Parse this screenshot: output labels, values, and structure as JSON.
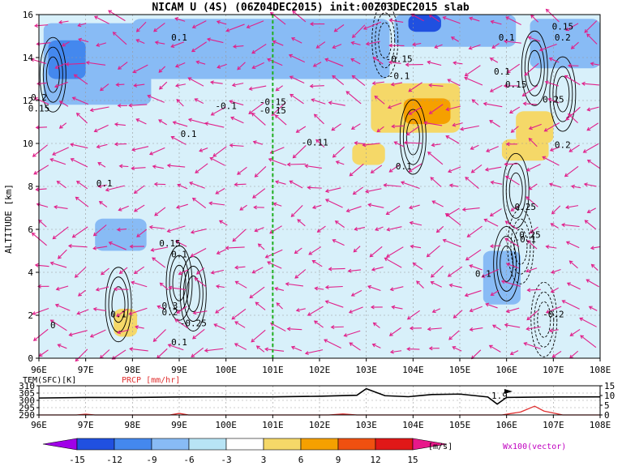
{
  "colors": {
    "background": "#ffffff",
    "vector": "#e0208a",
    "marker_line": "#20b020",
    "temp_line": "#000000",
    "prcp_line": "#e03030",
    "prcp_label": "#e03030",
    "vector_label": "#c000c0",
    "shade_neg": [
      "#a000e8",
      "#2050e0",
      "#4488ee",
      "#88bbf5",
      "#b8e4f5"
    ],
    "shade_pos": [
      "#f5d868",
      "#f5a000",
      "#f05010",
      "#e01818",
      "#b80018"
    ]
  },
  "chart_data": [
    {
      "type": "heatmap",
      "title": "NICAM U (4S) (06Z04DEC2015) init:00Z03DEC2015 slab",
      "xlabel": "",
      "ylabel": "ALTITUDE [km]",
      "xlim": [
        96,
        108
      ],
      "ylim": [
        0,
        16
      ],
      "x_ticks": [
        "96E",
        "97E",
        "98E",
        "99E",
        "100E",
        "101E",
        "102E",
        "103E",
        "104E",
        "105E",
        "106E",
        "107E",
        "108E"
      ],
      "y_ticks": [
        "0",
        "2",
        "4",
        "6",
        "8",
        "10",
        "12",
        "14",
        "16"
      ],
      "grid": true,
      "marker_longitude": 101,
      "shaded_variable_units": "[m/s]",
      "shaded_regions": [
        {
          "lon_min": 96.1,
          "lon_max": 98.4,
          "alt_min": 11.8,
          "alt_max": 15.6,
          "level": -6
        },
        {
          "lon_min": 98.0,
          "lon_max": 103.5,
          "alt_min": 13.0,
          "alt_max": 15.8,
          "level": -6
        },
        {
          "lon_min": 103.6,
          "lon_max": 106.2,
          "alt_min": 14.5,
          "alt_max": 16.0,
          "level": -6
        },
        {
          "lon_min": 106.5,
          "lon_max": 108.0,
          "alt_min": 13.5,
          "alt_max": 15.8,
          "level": -6
        },
        {
          "lon_min": 97.2,
          "lon_max": 98.3,
          "alt_min": 5.0,
          "alt_max": 6.5,
          "level": -6
        },
        {
          "lon_min": 103.9,
          "lon_max": 104.6,
          "alt_min": 15.2,
          "alt_max": 16.0,
          "level": -12
        },
        {
          "lon_min": 96.2,
          "lon_max": 97.0,
          "alt_min": 13.0,
          "alt_max": 14.8,
          "level": -9
        },
        {
          "lon_min": 105.5,
          "lon_max": 106.3,
          "alt_min": 2.5,
          "alt_max": 5.0,
          "level": -6
        },
        {
          "lon_min": 97.6,
          "lon_max": 98.1,
          "alt_min": 1.0,
          "alt_max": 2.3,
          "level": 3
        },
        {
          "lon_min": 103.1,
          "lon_max": 105.0,
          "alt_min": 10.5,
          "alt_max": 12.8,
          "level": 3
        },
        {
          "lon_min": 103.8,
          "lon_max": 104.8,
          "alt_min": 10.9,
          "alt_max": 12.1,
          "level": 6
        },
        {
          "lon_min": 106.2,
          "lon_max": 107.0,
          "alt_min": 10.0,
          "alt_max": 11.5,
          "level": 3
        },
        {
          "lon_min": 105.9,
          "lon_max": 106.9,
          "alt_min": 9.2,
          "alt_max": 10.2,
          "level": 3
        },
        {
          "lon_min": 102.7,
          "lon_max": 103.4,
          "alt_min": 9.0,
          "alt_max": 10.0,
          "level": 3
        }
      ],
      "contours": [
        {
          "lon": 96.3,
          "alt": 13.2,
          "value": 0.25,
          "sign": "pos"
        },
        {
          "lon": 97.7,
          "alt": 2.5,
          "value": 0.2,
          "sign": "pos"
        },
        {
          "lon": 99.0,
          "alt": 3.5,
          "value": 0.25,
          "sign": "pos"
        },
        {
          "lon": 99.3,
          "alt": 3.0,
          "value": 0.25,
          "sign": "pos"
        },
        {
          "lon": 104.0,
          "alt": 10.3,
          "value": 0.1,
          "sign": "pos"
        },
        {
          "lon": 106.2,
          "alt": 7.8,
          "value": 0.25,
          "sign": "pos"
        },
        {
          "lon": 106.0,
          "alt": 4.4,
          "value": 0.1,
          "sign": "pos"
        },
        {
          "lon": 106.6,
          "alt": 13.5,
          "value": 0.15,
          "sign": "pos"
        },
        {
          "lon": 107.2,
          "alt": 12.3,
          "value": 0.25,
          "sign": "pos"
        },
        {
          "lon": 103.4,
          "alt": 14.8,
          "value": -0.15,
          "sign": "neg"
        },
        {
          "lon": 106.8,
          "alt": 1.8,
          "value": -0.2,
          "sign": "neg"
        },
        {
          "lon": 106.3,
          "alt": 5.2,
          "value": -0.1,
          "sign": "neg"
        }
      ],
      "contour_labels": [
        {
          "text": "0.1",
          "lon": 99.0,
          "alt": 14.8
        },
        {
          "text": "0.2",
          "lon": 96.0,
          "alt": 12.0
        },
        {
          "text": "0.15",
          "lon": 96.0,
          "alt": 11.5
        },
        {
          "text": "0.1",
          "lon": 97.4,
          "alt": 8.0
        },
        {
          "text": "0.1",
          "lon": 99.2,
          "alt": 10.3
        },
        {
          "text": "-0.1",
          "lon": 100.0,
          "alt": 11.6
        },
        {
          "text": "-0.15",
          "lon": 101.0,
          "alt": 11.8
        },
        {
          "text": "-0.15",
          "lon": 101.0,
          "alt": 11.4
        },
        {
          "text": "-0.15",
          "lon": 103.7,
          "alt": 13.8
        },
        {
          "text": "-0.1",
          "lon": 103.7,
          "alt": 13.0
        },
        {
          "text": "-0.11",
          "lon": 101.9,
          "alt": 9.9
        },
        {
          "text": "0.1",
          "lon": 103.8,
          "alt": 8.8
        },
        {
          "text": "0.1",
          "lon": 106.0,
          "alt": 14.8
        },
        {
          "text": "0.15",
          "lon": 107.2,
          "alt": 15.3
        },
        {
          "text": "0.2",
          "lon": 107.2,
          "alt": 14.8
        },
        {
          "text": "0.1",
          "lon": 105.9,
          "alt": 13.2
        },
        {
          "text": "0.15",
          "lon": 106.2,
          "alt": 12.6
        },
        {
          "text": "0.25",
          "lon": 107.0,
          "alt": 11.9
        },
        {
          "text": "0.2",
          "lon": 107.2,
          "alt": 9.8
        },
        {
          "text": "0.25",
          "lon": 106.4,
          "alt": 6.9
        },
        {
          "text": "0.25",
          "lon": 106.5,
          "alt": 5.6
        },
        {
          "text": "-0.1",
          "lon": 106.4,
          "alt": 5.4
        },
        {
          "text": "0.1",
          "lon": 105.5,
          "alt": 3.8
        },
        {
          "text": "-0.2",
          "lon": 107.0,
          "alt": 1.9
        },
        {
          "text": "0.15",
          "lon": 98.8,
          "alt": 5.2
        },
        {
          "text": "0.1",
          "lon": 99.0,
          "alt": 4.7
        },
        {
          "text": "0.3",
          "lon": 98.8,
          "alt": 2.3
        },
        {
          "text": "0.2",
          "lon": 98.8,
          "alt": 2.0
        },
        {
          "text": "-0.25",
          "lon": 99.3,
          "alt": 1.5
        },
        {
          "text": "0.1",
          "lon": 99.0,
          "alt": 0.6
        },
        {
          "text": "0.1",
          "lon": 97.7,
          "alt": 1.9
        },
        {
          "text": "0",
          "lon": 96.3,
          "alt": 1.4
        }
      ],
      "vector_label": "Wx100(vector)"
    },
    {
      "type": "line",
      "title": "",
      "xlim": [
        96,
        108
      ],
      "x_ticks": [
        "96E",
        "97E",
        "98E",
        "99E",
        "100E",
        "101E",
        "102E",
        "103E",
        "104E",
        "105E",
        "106E",
        "107E",
        "108E"
      ],
      "left_axis": {
        "label": "TEM(SFC)[K]",
        "ticks": [
          "290",
          "295",
          "300",
          "305",
          "310"
        ],
        "ylim": [
          290,
          310
        ]
      },
      "right_axis": {
        "label": "PRCP [mm/hr]",
        "ticks": [
          "0",
          "5",
          "10",
          "15"
        ],
        "ylim": [
          0,
          15
        ]
      },
      "series": [
        {
          "name": "TEM(SFC)[K]",
          "axis": "left",
          "x": [
            96,
            97,
            98,
            99,
            100,
            101,
            102,
            102.8,
            103.0,
            103.4,
            103.9,
            104.4,
            105.0,
            105.6,
            105.8,
            106.0,
            106.5,
            107,
            108
          ],
          "y": [
            301.6,
            302.0,
            302.0,
            302.3,
            302.4,
            302.4,
            302.8,
            303.5,
            308.0,
            303.2,
            302.5,
            304.0,
            304.3,
            302.3,
            297.4,
            302.0,
            302.2,
            302.3,
            302.4
          ]
        },
        {
          "name": "PRCP [mm/hr]",
          "axis": "right",
          "x": [
            96,
            96.8,
            97.0,
            97.2,
            98.8,
            99.0,
            99.2,
            102.2,
            102.5,
            102.8,
            105.9,
            106.3,
            106.6,
            106.8,
            107.2,
            108
          ],
          "y": [
            0,
            0,
            0.4,
            0,
            0,
            0.8,
            0,
            0,
            0.5,
            0,
            0,
            1.5,
            4.5,
            2.0,
            0,
            0
          ]
        }
      ],
      "annotation": "1.9"
    },
    {
      "type": "colorbar",
      "levels": [
        "-15",
        "-12",
        "-9",
        "-6",
        "-3",
        "3",
        "6",
        "9",
        "12",
        "15"
      ],
      "units": "[m/s]"
    }
  ]
}
